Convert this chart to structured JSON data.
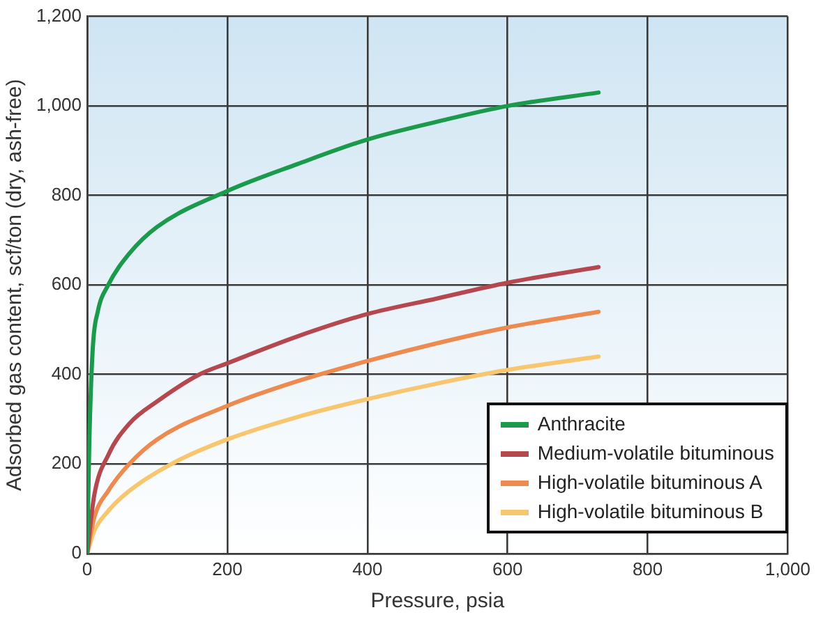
{
  "chart_data": {
    "type": "line",
    "xlabel": "Pressure, psia",
    "ylabel": "Adsorbed gas content, scf/ton (dry, ash-free)",
    "xlim": [
      0,
      1000
    ],
    "xticks": [
      0,
      200,
      400,
      600,
      800,
      {
        "value": 1000,
        "label": "1,000"
      }
    ],
    "ylim": [
      0,
      1200
    ],
    "yticks": [
      0,
      200,
      400,
      600,
      800,
      {
        "value": 1000,
        "label": "1,000"
      },
      {
        "value": 1200,
        "label": "1,200"
      }
    ],
    "grid": true,
    "legend": "bottom right",
    "marker": "none",
    "line_style": "solid",
    "series": [
      {
        "name": "Anthracite",
        "color": "#1a9a4a",
        "x": [
          0,
          3,
          8,
          15,
          30,
          60,
          100,
          200,
          300,
          400,
          500,
          600,
          730
        ],
        "values": [
          0,
          250,
          460,
          540,
          600,
          670,
          730,
          810,
          870,
          925,
          965,
          1000,
          1030
        ]
      },
      {
        "name": "Medium-volatile bituminous",
        "color": "#b5484f",
        "x": [
          0,
          10,
          30,
          60,
          100,
          160,
          200,
          300,
          400,
          500,
          600,
          730
        ],
        "values": [
          0,
          130,
          220,
          290,
          340,
          400,
          425,
          485,
          535,
          570,
          605,
          640
        ]
      },
      {
        "name": "High-volatile bituminous A",
        "color": "#ec8a4f",
        "x": [
          0,
          10,
          30,
          60,
          100,
          200,
          300,
          400,
          500,
          600,
          730
        ],
        "values": [
          0,
          80,
          140,
          200,
          255,
          330,
          385,
          430,
          470,
          505,
          540
        ]
      },
      {
        "name": "High-volatile bituminous B",
        "color": "#f7c66f",
        "x": [
          0,
          10,
          30,
          60,
          120,
          200,
          300,
          400,
          500,
          600,
          730
        ],
        "values": [
          0,
          50,
          95,
          140,
          200,
          255,
          305,
          345,
          380,
          410,
          440
        ]
      }
    ]
  }
}
